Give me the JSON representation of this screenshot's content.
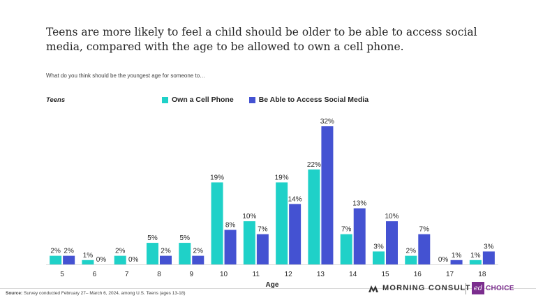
{
  "title": "Teens are more likely to feel a child should be older to be able to access social media, compared with the age to be allowed to own a cell phone.",
  "subtitle": "What do you think should be the youngest age for someone to…",
  "group_label": "Teens",
  "source_label": "Source:",
  "source_text": " Survey conducted February 27– March 6, 2024,  among U.S. Teens (ages 13-18)",
  "logos": {
    "primary": "MORNING CONSULT",
    "secondary_mark": "ed",
    "secondary_text": "CHOICE"
  },
  "colors": {
    "cell_phone": "#1fd1c8",
    "social_media": "#4452d2"
  },
  "chart_data": {
    "type": "bar",
    "xlabel": "Age",
    "ylabel": "",
    "ylim": [
      0,
      32
    ],
    "grid": false,
    "legend_position": "top",
    "categories": [
      "5",
      "6",
      "7",
      "8",
      "9",
      "10",
      "11",
      "12",
      "13",
      "14",
      "15",
      "16",
      "17",
      "18"
    ],
    "series": [
      {
        "name": "Own a Cell Phone",
        "values": [
          2,
          1,
          2,
          5,
          5,
          19,
          10,
          19,
          22,
          7,
          3,
          2,
          0,
          1
        ]
      },
      {
        "name": "Be Able to Access Social Media",
        "values": [
          2,
          0,
          0,
          2,
          2,
          8,
          7,
          14,
          32,
          13,
          10,
          7,
          1,
          3
        ]
      }
    ]
  }
}
